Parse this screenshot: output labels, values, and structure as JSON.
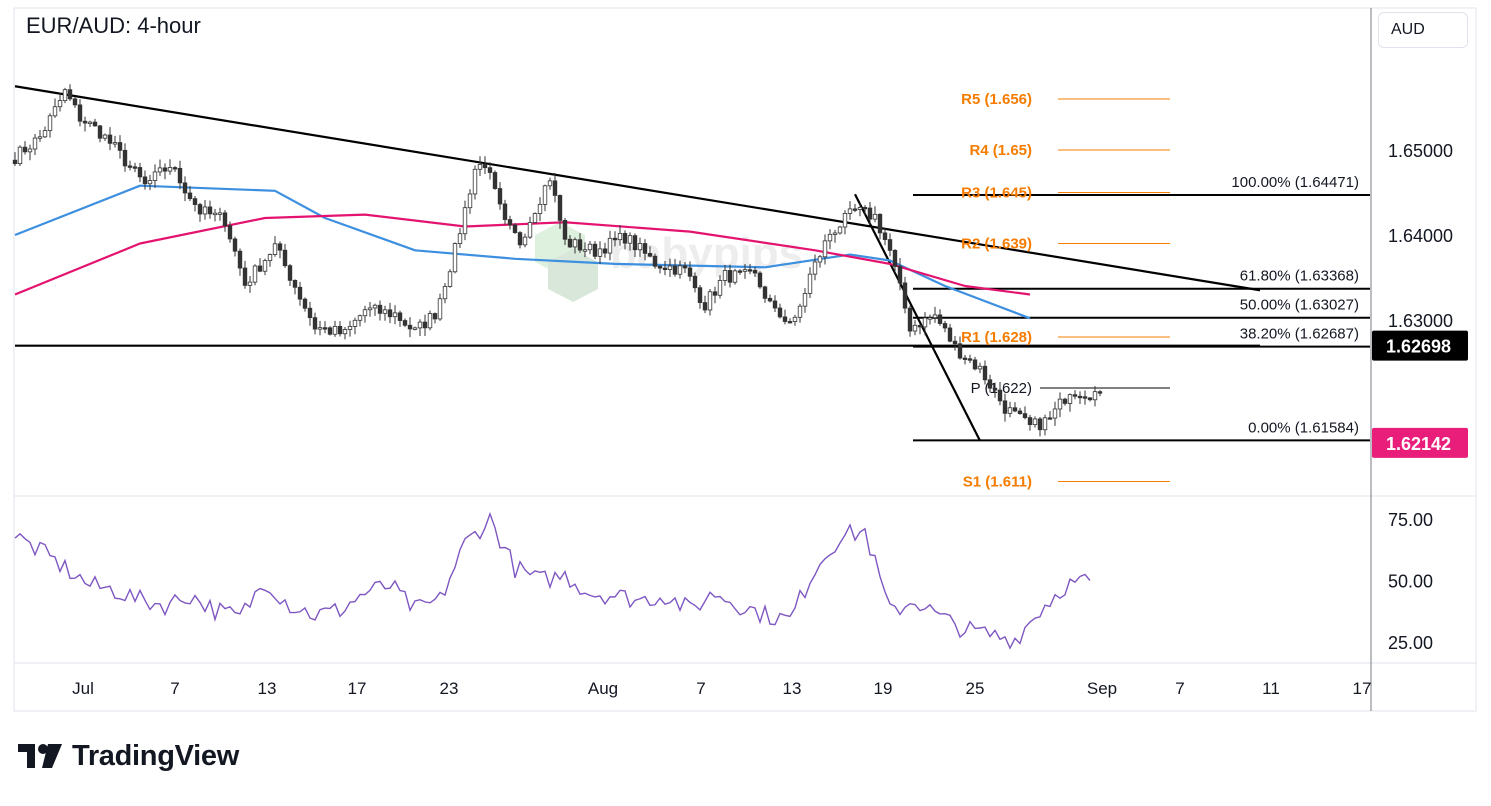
{
  "title": "EUR/AUD: 4-hour",
  "currency_button": "AUD",
  "brand": "TradingView",
  "watermark": "babypips",
  "colors": {
    "up": "#26a69a",
    "down": "#ef5350",
    "ma_fast": "#3d8fe0",
    "ma_slow": "#e4136f",
    "pivot": "#f57c00",
    "rsi": "#7e57c2",
    "last_price": "#e91e7b",
    "level_tag": "#000000"
  },
  "chart_data": [
    {
      "type": "candlestick",
      "title": "EUR/AUD: 4-hour",
      "y_axis_ticks": [
        "1.65000",
        "1.64000",
        "1.63000"
      ],
      "x_axis_ticks": [
        "Jul",
        "7",
        "13",
        "17",
        "23",
        "Aug",
        "7",
        "13",
        "19",
        "25",
        "Sep",
        "7",
        "11",
        "17"
      ],
      "ylim": [
        1.611,
        1.658
      ],
      "close_path": [
        [
          0,
          1.6492
        ],
        [
          5,
          1.6515
        ],
        [
          10,
          1.6568
        ],
        [
          13,
          1.6538
        ],
        [
          17,
          1.6521
        ],
        [
          20,
          1.6502
        ],
        [
          26,
          1.6458
        ],
        [
          31,
          1.6482
        ],
        [
          37,
          1.6428
        ],
        [
          42,
          1.6418
        ],
        [
          46,
          1.6342
        ],
        [
          52,
          1.6387
        ],
        [
          55,
          1.6352
        ],
        [
          60,
          1.6292
        ],
        [
          66,
          1.6283
        ],
        [
          70,
          1.6312
        ],
        [
          76,
          1.6307
        ],
        [
          80,
          1.6286
        ],
        [
          84,
          1.6308
        ],
        [
          88,
          1.6382
        ],
        [
          92,
          1.6478
        ],
        [
          94,
          1.6485
        ],
        [
          98,
          1.6412
        ],
        [
          101,
          1.6392
        ],
        [
          104,
          1.6432
        ],
        [
          107,
          1.6468
        ],
        [
          110,
          1.6392
        ],
        [
          116,
          1.6381
        ],
        [
          122,
          1.6398
        ],
        [
          128,
          1.6367
        ],
        [
          134,
          1.6358
        ],
        [
          138,
          1.6318
        ],
        [
          142,
          1.6352
        ],
        [
          148,
          1.6351
        ],
        [
          152,
          1.6308
        ],
        [
          156,
          1.6297
        ],
        [
          159,
          1.6352
        ],
        [
          163,
          1.6402
        ],
        [
          168,
          1.6428
        ],
        [
          172,
          1.6422
        ],
        [
          175,
          1.6381
        ],
        [
          179,
          1.6292
        ],
        [
          184,
          1.6305
        ],
        [
          188,
          1.6268
        ],
        [
          193,
          1.6242
        ],
        [
          198,
          1.6197
        ],
        [
          203,
          1.6174
        ],
        [
          207,
          1.6183
        ],
        [
          211,
          1.6218
        ],
        [
          215,
          1.6214
        ],
        [
          217,
          1.6214
        ]
      ],
      "series": [
        {
          "name": "",
          "kind": "sma",
          "color": "#3d8fe0",
          "points": [
            [
              0,
              1.64
            ],
            [
              25,
              1.6458
            ],
            [
              52,
              1.6452
            ],
            [
              62,
              1.642
            ],
            [
              80,
              1.6382
            ],
            [
              100,
              1.6372
            ],
            [
              120,
              1.6366
            ],
            [
              150,
              1.6362
            ],
            [
              167,
              1.6377
            ],
            [
              175,
              1.637
            ],
            [
              186,
              1.634
            ],
            [
              203,
              1.6302
            ]
          ]
        },
        {
          "name": "",
          "kind": "sma",
          "color": "#e4136f",
          "points": [
            [
              0,
              1.633
            ],
            [
              25,
              1.639
            ],
            [
              50,
              1.642
            ],
            [
              70,
              1.6424
            ],
            [
              90,
              1.641
            ],
            [
              110,
              1.6415
            ],
            [
              135,
              1.6404
            ],
            [
              160,
              1.6382
            ],
            [
              175,
              1.6366
            ],
            [
              190,
              1.634
            ],
            [
              203,
              1.633
            ]
          ]
        }
      ],
      "trendlines": [
        {
          "from": [
            0,
            1.6575
          ],
          "to": [
            249,
            1.6335
          ]
        },
        {
          "from": [
            0,
            1.62698
          ],
          "to": [
            249,
            1.62698
          ]
        },
        {
          "from": [
            168,
            1.6448
          ],
          "to": [
            193,
            1.6158
          ]
        }
      ],
      "fibonacci": [
        {
          "label": "100.00% (1.64471)",
          "value": 1.64471
        },
        {
          "label": "61.80% (1.63368)",
          "value": 1.63368
        },
        {
          "label": "50.00% (1.63027)",
          "value": 1.63027
        },
        {
          "label": "38.20% (1.62687)",
          "value": 1.62687
        },
        {
          "label": "0.00% (1.61584)",
          "value": 1.61584
        }
      ],
      "pivots": [
        {
          "label": "R5 (1.656)",
          "value": 1.656
        },
        {
          "label": "R4 (1.65)",
          "value": 1.65
        },
        {
          "label": "R3 (1.645)",
          "value": 1.645
        },
        {
          "label": "R2 (1.639)",
          "value": 1.639
        },
        {
          "label": "R1 (1.628)",
          "value": 1.628
        },
        {
          "label": "P (1.622)",
          "value": 1.622
        },
        {
          "label": "S1 (1.611)",
          "value": 1.611
        }
      ],
      "price_tags": [
        {
          "label": "1.62698",
          "value": 1.62698,
          "color": "#000000"
        },
        {
          "label": "1.62142",
          "value": 1.62142,
          "color": "#e91e7b"
        }
      ],
      "grid": false
    },
    {
      "type": "line",
      "indicator": "RSI",
      "y_axis_ticks": [
        "75.00",
        "50.00",
        "25.00"
      ],
      "ylim": [
        20,
        80
      ],
      "x": [
        0,
        5,
        10,
        15,
        20,
        25,
        30,
        35,
        40,
        45,
        50,
        55,
        60,
        65,
        70,
        75,
        80,
        85,
        90,
        95,
        100,
        105,
        110,
        115,
        120,
        125,
        130,
        135,
        140,
        145,
        150,
        155,
        160,
        165,
        170,
        175,
        180,
        185,
        190,
        195,
        200,
        205,
        210,
        215
      ],
      "values": [
        68,
        62,
        55,
        48,
        46,
        42,
        40,
        44,
        38,
        35,
        50,
        40,
        36,
        38,
        45,
        48,
        38,
        42,
        65,
        75,
        55,
        50,
        52,
        45,
        44,
        42,
        44,
        38,
        45,
        40,
        36,
        34,
        55,
        68,
        70,
        37,
        42,
        35,
        30,
        28,
        26,
        38,
        48,
        50
      ]
    }
  ]
}
